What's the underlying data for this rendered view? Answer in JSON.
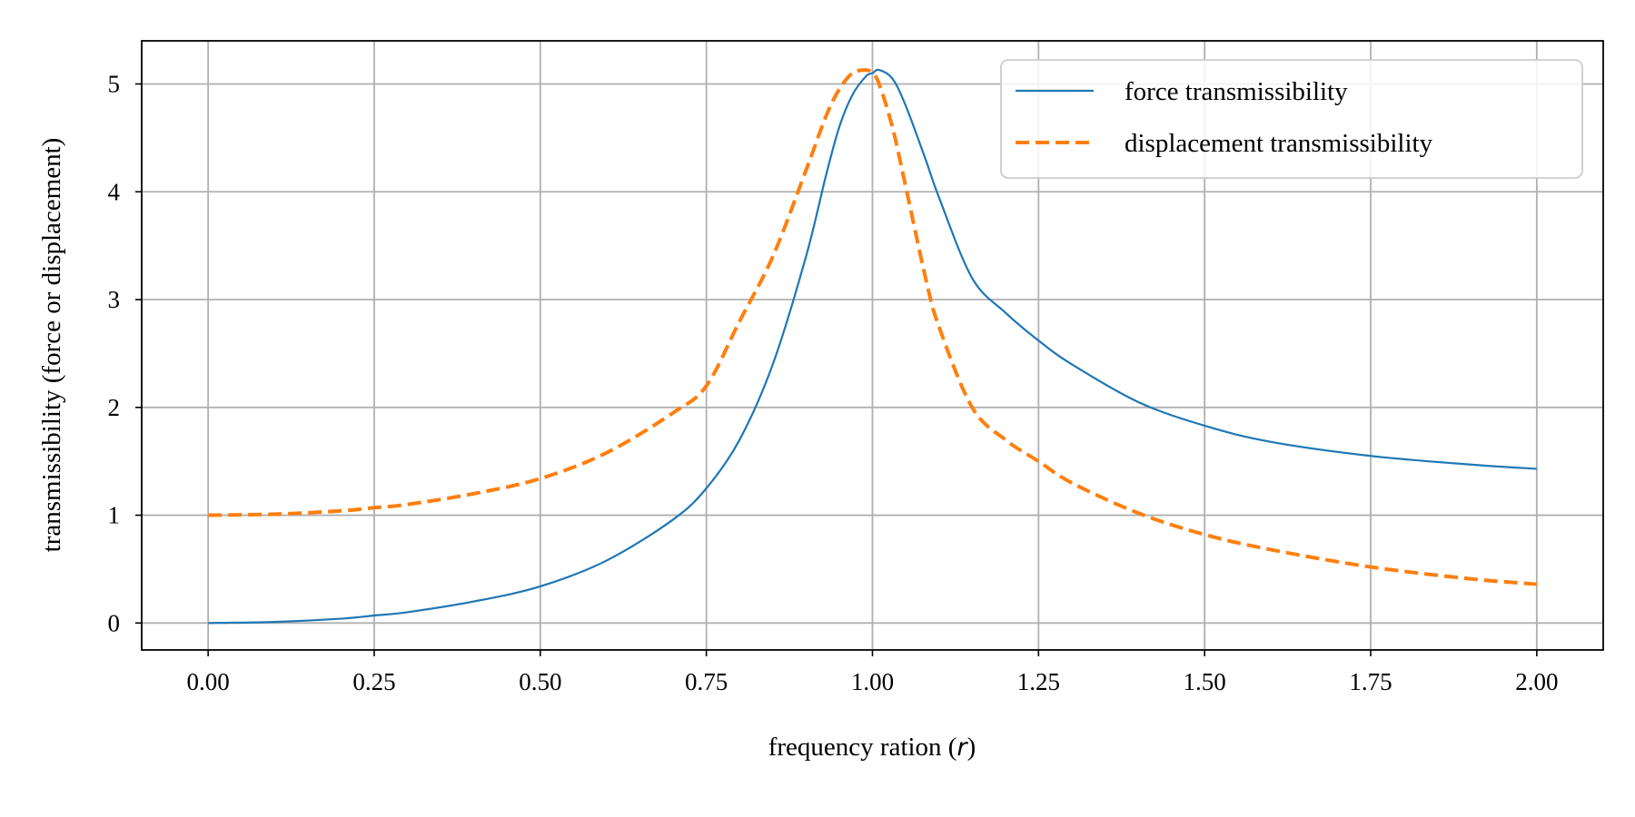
{
  "chart_data": {
    "type": "line",
    "xlabel_prefix": "frequency ration (",
    "xlabel_var": "r",
    "xlabel_suffix": ")",
    "ylabel": "transmissibility (force or displacement)",
    "xlim": [
      -0.1,
      2.1
    ],
    "ylim": [
      -0.25,
      5.4
    ],
    "xticks": [
      0.0,
      0.25,
      0.5,
      0.75,
      1.0,
      1.25,
      1.5,
      1.75,
      2.0
    ],
    "xtick_labels": [
      "0.00",
      "0.25",
      "0.50",
      "0.75",
      "1.00",
      "1.25",
      "1.50",
      "1.75",
      "2.00"
    ],
    "yticks": [
      0,
      1,
      2,
      3,
      4,
      5
    ],
    "ytick_labels": [
      "0",
      "1",
      "2",
      "3",
      "4",
      "5"
    ],
    "grid": true,
    "legend_position": "top-right",
    "series": [
      {
        "name": "force transmissibility",
        "color": "#1f77b4",
        "style": "solid",
        "x": [
          0.0,
          0.1,
          0.2,
          0.25,
          0.3,
          0.4,
          0.5,
          0.6,
          0.7,
          0.75,
          0.8,
          0.85,
          0.9,
          0.93,
          0.95,
          0.97,
          0.99,
          1.0,
          1.01,
          1.03,
          1.05,
          1.08,
          1.1,
          1.15,
          1.2,
          1.25,
          1.3,
          1.4,
          1.5,
          1.6,
          1.75,
          1.9,
          2.0
        ],
        "y": [
          0.0,
          0.01,
          0.04,
          0.07,
          0.1,
          0.2,
          0.34,
          0.58,
          0.96,
          1.25,
          1.7,
          2.4,
          3.4,
          4.15,
          4.6,
          4.9,
          5.07,
          5.1,
          5.13,
          5.05,
          4.8,
          4.3,
          3.95,
          3.2,
          2.88,
          2.62,
          2.4,
          2.05,
          1.83,
          1.68,
          1.55,
          1.47,
          1.43
        ]
      },
      {
        "name": "displacement transmissibility",
        "color": "#ff7f0e",
        "style": "dashed",
        "x": [
          0.0,
          0.1,
          0.2,
          0.25,
          0.3,
          0.4,
          0.5,
          0.6,
          0.7,
          0.75,
          0.8,
          0.85,
          0.9,
          0.93,
          0.95,
          0.97,
          0.99,
          1.0,
          1.01,
          1.03,
          1.05,
          1.08,
          1.1,
          1.15,
          1.2,
          1.25,
          1.3,
          1.4,
          1.5,
          1.6,
          1.75,
          1.9,
          2.0
        ],
        "y": [
          1.0,
          1.01,
          1.04,
          1.07,
          1.1,
          1.2,
          1.34,
          1.58,
          1.95,
          2.2,
          2.8,
          3.4,
          4.2,
          4.7,
          4.95,
          5.1,
          5.13,
          5.1,
          5.0,
          4.6,
          4.05,
          3.2,
          2.75,
          2.0,
          1.7,
          1.5,
          1.3,
          1.02,
          0.82,
          0.68,
          0.52,
          0.41,
          0.36
        ]
      }
    ]
  }
}
